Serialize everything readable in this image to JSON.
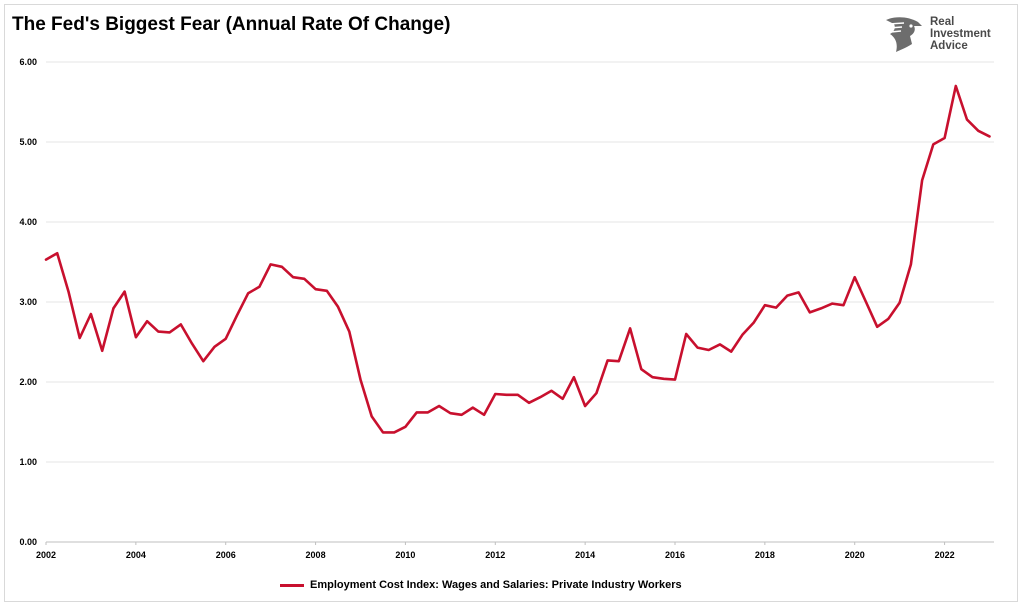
{
  "chart_data": {
    "type": "line",
    "title": "The Fed's Biggest Fear (Annual Rate Of Change)",
    "xlabel": "",
    "ylabel": "",
    "xlim": [
      2002.0,
      2023.1
    ],
    "ylim": [
      0,
      6
    ],
    "y_ticks": [
      "0.00",
      "1.00",
      "2.00",
      "3.00",
      "4.00",
      "5.00",
      "6.00"
    ],
    "x_ticks": [
      "2002",
      "2004",
      "2006",
      "2008",
      "2010",
      "2012",
      "2014",
      "2016",
      "2018",
      "2020",
      "2022"
    ],
    "grid": true,
    "legend_position": "bottom",
    "series": [
      {
        "name": "Employment Cost Index: Wages and Salaries: Private Industry Workers",
        "color": "#c8102e",
        "x": [
          2002.0,
          2002.25,
          2002.5,
          2002.75,
          2003.0,
          2003.25,
          2003.5,
          2003.75,
          2004.0,
          2004.25,
          2004.5,
          2004.75,
          2005.0,
          2005.25,
          2005.5,
          2005.75,
          2006.0,
          2006.25,
          2006.5,
          2006.75,
          2007.0,
          2007.25,
          2007.5,
          2007.75,
          2008.0,
          2008.25,
          2008.5,
          2008.75,
          2009.0,
          2009.25,
          2009.5,
          2009.75,
          2010.0,
          2010.25,
          2010.5,
          2010.75,
          2011.0,
          2011.25,
          2011.5,
          2011.75,
          2012.0,
          2012.25,
          2012.5,
          2012.75,
          2013.0,
          2013.25,
          2013.5,
          2013.75,
          2014.0,
          2014.25,
          2014.5,
          2014.75,
          2015.0,
          2015.25,
          2015.5,
          2015.75,
          2016.0,
          2016.25,
          2016.5,
          2016.75,
          2017.0,
          2017.25,
          2017.5,
          2017.75,
          2018.0,
          2018.25,
          2018.5,
          2018.75,
          2019.0,
          2019.25,
          2019.5,
          2019.75,
          2020.0,
          2020.25,
          2020.5,
          2020.75,
          2021.0,
          2021.25,
          2021.5,
          2021.75,
          2022.0,
          2022.25,
          2022.5,
          2022.75,
          2023.0
        ],
        "values": [
          3.53,
          3.61,
          3.13,
          2.55,
          2.85,
          2.39,
          2.92,
          3.13,
          2.56,
          2.76,
          2.63,
          2.62,
          2.72,
          2.48,
          2.26,
          2.44,
          2.54,
          2.83,
          3.11,
          3.19,
          3.47,
          3.44,
          3.31,
          3.29,
          3.16,
          3.14,
          2.94,
          2.63,
          2.03,
          1.57,
          1.37,
          1.37,
          1.44,
          1.62,
          1.62,
          1.7,
          1.61,
          1.59,
          1.68,
          1.59,
          1.85,
          1.84,
          1.84,
          1.74,
          1.81,
          1.89,
          1.79,
          2.06,
          1.7,
          1.86,
          2.27,
          2.26,
          2.67,
          2.16,
          2.06,
          2.04,
          2.03,
          2.6,
          2.43,
          2.4,
          2.47,
          2.38,
          2.59,
          2.74,
          2.96,
          2.93,
          3.08,
          3.12,
          2.87,
          2.92,
          2.98,
          2.96,
          3.31,
          3.0,
          2.69,
          2.79,
          2.99,
          3.47,
          4.52,
          4.97,
          5.05,
          5.7,
          5.28,
          5.14,
          5.07
        ]
      }
    ]
  },
  "logo": {
    "text_lines": [
      "Real",
      "Investment",
      "Advice"
    ],
    "icon": "eagle-head-icon"
  },
  "colors": {
    "line": "#c8102e",
    "grid": "#e6e6e6",
    "logo": "#4a4a4a"
  }
}
